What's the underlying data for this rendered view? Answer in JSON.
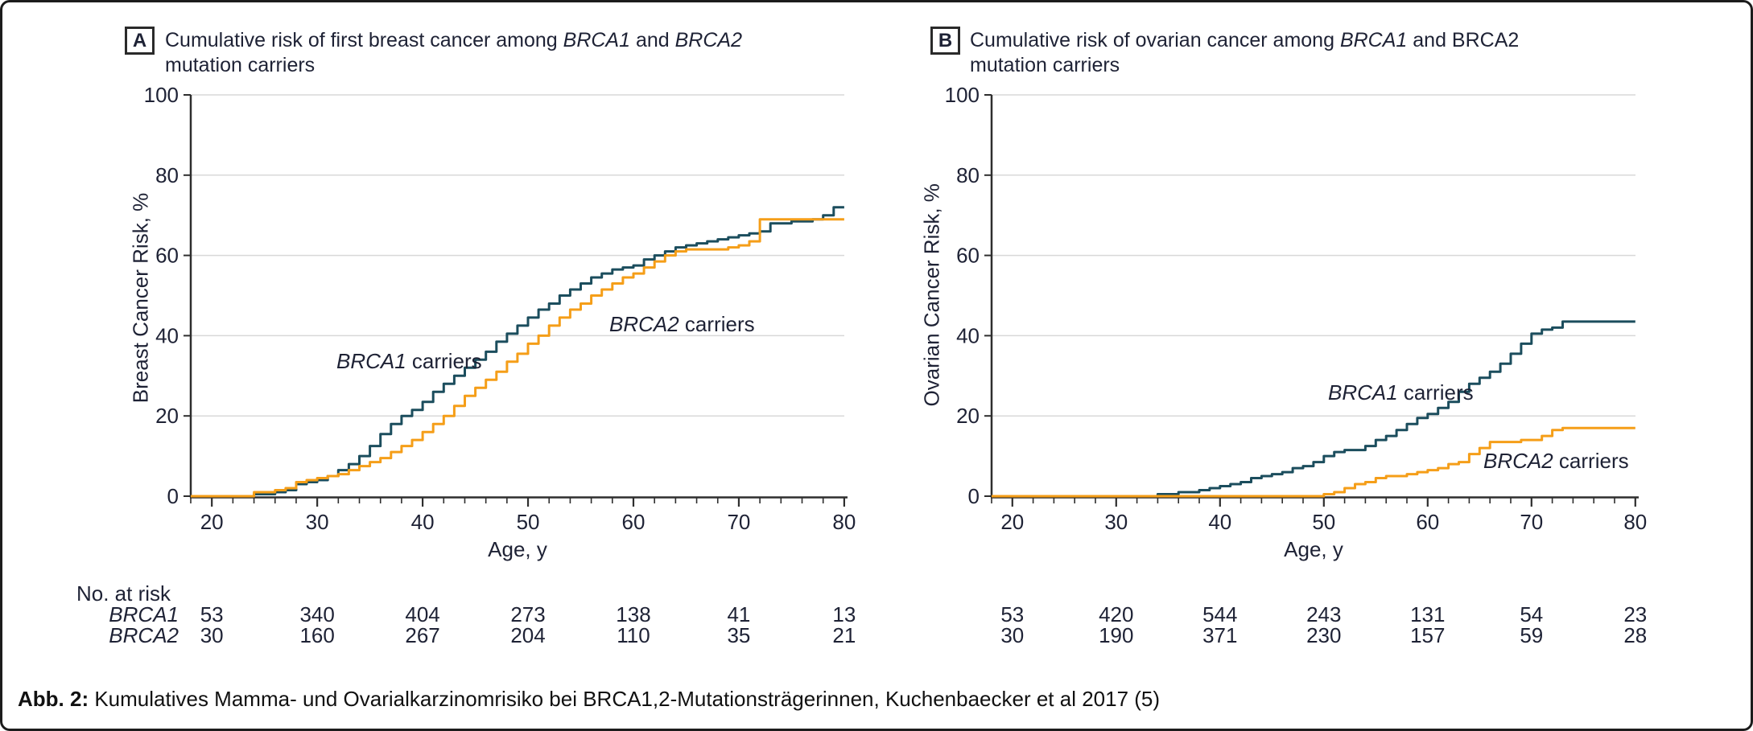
{
  "caption": {
    "label": "Abb. 2:",
    "text": " Kumulatives Mamma- und Ovarialkarzinomrisiko bei BRCA1,2-Mutationsträgerinnen, Kuchenbaecker et al 2017 (5)"
  },
  "colors": {
    "brca1": "#1b4d5d",
    "brca2": "#f59e18",
    "grid": "#d8d8d8",
    "axis": "#2e2e2e",
    "text": "#1e2235"
  },
  "chart_data": [
    {
      "type": "line",
      "panel": "A",
      "title": "Cumulative risk of first breast cancer among BRCA1 and BRCA2 mutation carriers",
      "title_line1": [
        {
          "t": "Cumulative risk of first breast cancer among ",
          "i": false
        },
        {
          "t": "BRCA1",
          "i": true
        },
        {
          "t": " and ",
          "i": false
        },
        {
          "t": "BRCA2",
          "i": true
        }
      ],
      "title_line2": "mutation carriers",
      "xlabel": "Age, y",
      "ylabel": "Breast Cancer Risk, %",
      "xlim": [
        18,
        80
      ],
      "ylim": [
        0,
        100
      ],
      "xticks": [
        20,
        30,
        40,
        50,
        60,
        70,
        80
      ],
      "yticks": [
        0,
        20,
        40,
        60,
        80,
        100
      ],
      "grid": "horizontal",
      "legend": "inline-annotations",
      "series": [
        {
          "name": "BRCA1 carriers",
          "label_segments": [
            {
              "t": "BRCA1",
              "i": true
            },
            {
              "t": " carriers",
              "i": false
            }
          ],
          "color": "#1b4d5d",
          "step": true,
          "points": [
            [
              18,
              0
            ],
            [
              24,
              0.5
            ],
            [
              26,
              1
            ],
            [
              27,
              1.5
            ],
            [
              28,
              3
            ],
            [
              29,
              3.5
            ],
            [
              30,
              4
            ],
            [
              31,
              5
            ],
            [
              32,
              6.5
            ],
            [
              33,
              8
            ],
            [
              34,
              10
            ],
            [
              35,
              12.5
            ],
            [
              36,
              15.5
            ],
            [
              37,
              18
            ],
            [
              38,
              20
            ],
            [
              39,
              21.5
            ],
            [
              40,
              23.5
            ],
            [
              41,
              26
            ],
            [
              42,
              28
            ],
            [
              43,
              30
            ],
            [
              44,
              32
            ],
            [
              45,
              34
            ],
            [
              46,
              36
            ],
            [
              47,
              38.5
            ],
            [
              48,
              40.5
            ],
            [
              49,
              42.5
            ],
            [
              50,
              44.5
            ],
            [
              51,
              46.5
            ],
            [
              52,
              48
            ],
            [
              53,
              50
            ],
            [
              54,
              51.5
            ],
            [
              55,
              53
            ],
            [
              56,
              54.5
            ],
            [
              57,
              55.5
            ],
            [
              58,
              56.5
            ],
            [
              59,
              57
            ],
            [
              60,
              57.5
            ],
            [
              61,
              59
            ],
            [
              62,
              60
            ],
            [
              63,
              61
            ],
            [
              64,
              62
            ],
            [
              65,
              62.5
            ],
            [
              66,
              63
            ],
            [
              67,
              63.5
            ],
            [
              68,
              64
            ],
            [
              69,
              64.5
            ],
            [
              70,
              65
            ],
            [
              71,
              65.5
            ],
            [
              72,
              66
            ],
            [
              73,
              68
            ],
            [
              75,
              68.5
            ],
            [
              77,
              69
            ],
            [
              78,
              70
            ],
            [
              79,
              72
            ],
            [
              80,
              72
            ]
          ]
        },
        {
          "name": "BRCA2 carriers",
          "label_segments": [
            {
              "t": "BRCA2",
              "i": true
            },
            {
              "t": " carriers",
              "i": false
            }
          ],
          "color": "#f59e18",
          "step": true,
          "points": [
            [
              18,
              0
            ],
            [
              24,
              1
            ],
            [
              26,
              1.5
            ],
            [
              27,
              2
            ],
            [
              28,
              3.5
            ],
            [
              29,
              4
            ],
            [
              30,
              4.5
            ],
            [
              31,
              5
            ],
            [
              32,
              5.5
            ],
            [
              33,
              6.5
            ],
            [
              34,
              7.5
            ],
            [
              35,
              8.5
            ],
            [
              36,
              9.5
            ],
            [
              37,
              11
            ],
            [
              38,
              12.5
            ],
            [
              39,
              14
            ],
            [
              40,
              16
            ],
            [
              41,
              18
            ],
            [
              42,
              20
            ],
            [
              43,
              22.5
            ],
            [
              44,
              25
            ],
            [
              45,
              27
            ],
            [
              46,
              29
            ],
            [
              47,
              31
            ],
            [
              48,
              33.5
            ],
            [
              49,
              35.5
            ],
            [
              50,
              38
            ],
            [
              51,
              40
            ],
            [
              52,
              42.5
            ],
            [
              53,
              44.5
            ],
            [
              54,
              46.5
            ],
            [
              55,
              48
            ],
            [
              56,
              50
            ],
            [
              57,
              51.5
            ],
            [
              58,
              53
            ],
            [
              59,
              54.5
            ],
            [
              60,
              55.5
            ],
            [
              61,
              57
            ],
            [
              62,
              58.5
            ],
            [
              63,
              60
            ],
            [
              64,
              61
            ],
            [
              65,
              61.5
            ],
            [
              69,
              62
            ],
            [
              70,
              62.5
            ],
            [
              71,
              63.5
            ],
            [
              72,
              69
            ],
            [
              80,
              69
            ]
          ]
        }
      ],
      "no_at_risk": {
        "header": "No. at risk",
        "ages": [
          20,
          30,
          40,
          50,
          60,
          70,
          80
        ],
        "rows": [
          {
            "label": "BRCA1",
            "values": [
              53,
              340,
              404,
              273,
              138,
              41,
              13
            ]
          },
          {
            "label": "BRCA2",
            "values": [
              30,
              160,
              267,
              204,
              110,
              35,
              21
            ]
          }
        ]
      }
    },
    {
      "type": "line",
      "panel": "B",
      "title": "Cumulative risk of ovarian cancer among BRCA1 and BRCA2 mutation carriers",
      "title_line1": [
        {
          "t": "Cumulative risk of ovarian cancer among ",
          "i": false
        },
        {
          "t": "BRCA1",
          "i": true
        },
        {
          "t": " and ",
          "i": false
        },
        {
          "t": "BRCA2",
          "i": false
        }
      ],
      "title_line2": "mutation carriers",
      "xlabel": "Age, y",
      "ylabel": "Ovarian Cancer Risk, %",
      "xlim": [
        18,
        80
      ],
      "ylim": [
        0,
        100
      ],
      "xticks": [
        20,
        30,
        40,
        50,
        60,
        70,
        80
      ],
      "yticks": [
        0,
        20,
        40,
        60,
        80,
        100
      ],
      "grid": "horizontal",
      "legend": "inline-annotations",
      "series": [
        {
          "name": "BRCA1 carriers",
          "label_segments": [
            {
              "t": "BRCA1",
              "i": true
            },
            {
              "t": " carriers",
              "i": false
            }
          ],
          "color": "#1b4d5d",
          "step": true,
          "points": [
            [
              18,
              0
            ],
            [
              34,
              0.5
            ],
            [
              36,
              1
            ],
            [
              38,
              1.5
            ],
            [
              39,
              2
            ],
            [
              40,
              2.5
            ],
            [
              41,
              3
            ],
            [
              42,
              3.5
            ],
            [
              43,
              4.5
            ],
            [
              44,
              5
            ],
            [
              45,
              5.5
            ],
            [
              46,
              6
            ],
            [
              47,
              7
            ],
            [
              48,
              7.5
            ],
            [
              49,
              8.5
            ],
            [
              50,
              10
            ],
            [
              51,
              11
            ],
            [
              52,
              11.5
            ],
            [
              54,
              12.5
            ],
            [
              55,
              14
            ],
            [
              56,
              15
            ],
            [
              57,
              16.5
            ],
            [
              58,
              18
            ],
            [
              59,
              19.5
            ],
            [
              60,
              20.5
            ],
            [
              61,
              22
            ],
            [
              62,
              23.5
            ],
            [
              63,
              26
            ],
            [
              64,
              28
            ],
            [
              65,
              29.5
            ],
            [
              66,
              31
            ],
            [
              67,
              33
            ],
            [
              68,
              35.5
            ],
            [
              69,
              38
            ],
            [
              70,
              40.5
            ],
            [
              71,
              41.5
            ],
            [
              72,
              42
            ],
            [
              73,
              43.5
            ],
            [
              80,
              43.5
            ]
          ]
        },
        {
          "name": "BRCA2 carriers",
          "label_segments": [
            {
              "t": "BRCA2",
              "i": true
            },
            {
              "t": " carriers",
              "i": false
            }
          ],
          "color": "#f59e18",
          "step": true,
          "points": [
            [
              18,
              0
            ],
            [
              50,
              0.5
            ],
            [
              51,
              1
            ],
            [
              52,
              2
            ],
            [
              53,
              3
            ],
            [
              54,
              3.5
            ],
            [
              55,
              4.5
            ],
            [
              56,
              5
            ],
            [
              58,
              5.5
            ],
            [
              59,
              6
            ],
            [
              60,
              6.5
            ],
            [
              61,
              7
            ],
            [
              62,
              8
            ],
            [
              63,
              8.5
            ],
            [
              64,
              10.5
            ],
            [
              65,
              12
            ],
            [
              66,
              13.5
            ],
            [
              69,
              14
            ],
            [
              71,
              15
            ],
            [
              72,
              16.5
            ],
            [
              73,
              17
            ],
            [
              80,
              17
            ]
          ]
        }
      ],
      "no_at_risk": {
        "header": "",
        "ages": [
          20,
          30,
          40,
          50,
          60,
          70,
          80
        ],
        "rows": [
          {
            "label": "",
            "values": [
              53,
              420,
              544,
              243,
              131,
              54,
              23
            ]
          },
          {
            "label": "",
            "values": [
              30,
              190,
              371,
              230,
              157,
              59,
              28
            ]
          }
        ]
      }
    }
  ]
}
